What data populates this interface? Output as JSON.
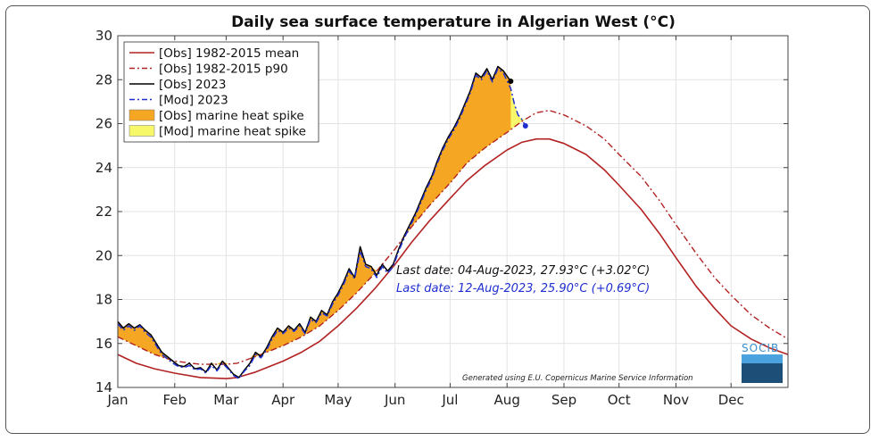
{
  "chart_data": {
    "type": "line",
    "title": "Daily sea surface temperature in Algerian West (°C)",
    "xlabel": "",
    "ylabel": "",
    "xlim": [
      0,
      365
    ],
    "ylim": [
      14,
      30
    ],
    "y_ticks": [
      14,
      16,
      18,
      20,
      22,
      24,
      26,
      28,
      30
    ],
    "x_ticks": [
      {
        "label": "Jan",
        "day": 0
      },
      {
        "label": "Feb",
        "day": 31
      },
      {
        "label": "Mar",
        "day": 59
      },
      {
        "label": "Apr",
        "day": 90
      },
      {
        "label": "May",
        "day": 120
      },
      {
        "label": "Jun",
        "day": 151
      },
      {
        "label": "Jul",
        "day": 181
      },
      {
        "label": "Aug",
        "day": 212
      },
      {
        "label": "Sep",
        "day": 243
      },
      {
        "label": "Oct",
        "day": 273
      },
      {
        "label": "Nov",
        "day": 304
      },
      {
        "label": "Dec",
        "day": 334
      }
    ],
    "grid": true,
    "legend_position": "top-left",
    "legend": [
      {
        "label": "[Obs] 1982-2015 mean",
        "kind": "line",
        "color": "#b22222",
        "dash": "solid"
      },
      {
        "label": "[Obs] 1982-2015 p90",
        "kind": "line",
        "color": "#b22222",
        "dash": "dashdot"
      },
      {
        "label": "[Obs] 2023",
        "kind": "line",
        "color": "#000000",
        "dash": "solid"
      },
      {
        "label": "[Mod] 2023",
        "kind": "line",
        "color": "#1f2fd0",
        "dash": "dashdot"
      },
      {
        "label": "[Obs] marine heat spike",
        "kind": "patch",
        "color": "#f5a623"
      },
      {
        "label": "[Mod] marine heat spike",
        "kind": "patch",
        "color": "#f7f76a"
      }
    ],
    "series": [
      {
        "name": "[Obs] 1982-2015 mean",
        "points": [
          [
            0,
            15.5
          ],
          [
            10,
            15.1
          ],
          [
            20,
            14.85
          ],
          [
            31,
            14.65
          ],
          [
            45,
            14.45
          ],
          [
            59,
            14.4
          ],
          [
            65,
            14.45
          ],
          [
            75,
            14.7
          ],
          [
            90,
            15.2
          ],
          [
            100,
            15.6
          ],
          [
            110,
            16.1
          ],
          [
            120,
            16.8
          ],
          [
            130,
            17.6
          ],
          [
            140,
            18.5
          ],
          [
            151,
            19.6
          ],
          [
            160,
            20.6
          ],
          [
            170,
            21.6
          ],
          [
            181,
            22.6
          ],
          [
            190,
            23.4
          ],
          [
            200,
            24.1
          ],
          [
            212,
            24.8
          ],
          [
            220,
            25.15
          ],
          [
            228,
            25.3
          ],
          [
            235,
            25.3
          ],
          [
            243,
            25.1
          ],
          [
            255,
            24.6
          ],
          [
            265,
            23.9
          ],
          [
            273,
            23.2
          ],
          [
            285,
            22.1
          ],
          [
            295,
            21.0
          ],
          [
            304,
            19.9
          ],
          [
            315,
            18.6
          ],
          [
            325,
            17.6
          ],
          [
            334,
            16.8
          ],
          [
            345,
            16.2
          ],
          [
            355,
            15.8
          ],
          [
            365,
            15.5
          ]
        ]
      },
      {
        "name": "[Obs] 1982-2015 p90",
        "points": [
          [
            0,
            16.3
          ],
          [
            10,
            15.9
          ],
          [
            20,
            15.5
          ],
          [
            31,
            15.2
          ],
          [
            45,
            15.05
          ],
          [
            59,
            15.05
          ],
          [
            65,
            15.1
          ],
          [
            75,
            15.4
          ],
          [
            90,
            15.9
          ],
          [
            100,
            16.3
          ],
          [
            110,
            16.8
          ],
          [
            120,
            17.5
          ],
          [
            130,
            18.3
          ],
          [
            140,
            19.2
          ],
          [
            151,
            20.3
          ],
          [
            160,
            21.3
          ],
          [
            170,
            22.3
          ],
          [
            181,
            23.3
          ],
          [
            190,
            24.2
          ],
          [
            200,
            24.9
          ],
          [
            212,
            25.6
          ],
          [
            220,
            26.1
          ],
          [
            228,
            26.5
          ],
          [
            235,
            26.6
          ],
          [
            243,
            26.4
          ],
          [
            255,
            25.9
          ],
          [
            265,
            25.3
          ],
          [
            273,
            24.6
          ],
          [
            285,
            23.6
          ],
          [
            295,
            22.5
          ],
          [
            304,
            21.4
          ],
          [
            315,
            20.1
          ],
          [
            325,
            19.0
          ],
          [
            334,
            18.2
          ],
          [
            345,
            17.3
          ],
          [
            355,
            16.7
          ],
          [
            365,
            16.2
          ]
        ]
      },
      {
        "name": "[Obs] 2023",
        "points": [
          [
            0,
            17.0
          ],
          [
            3,
            16.7
          ],
          [
            6,
            16.9
          ],
          [
            9,
            16.7
          ],
          [
            12,
            16.85
          ],
          [
            15,
            16.6
          ],
          [
            18,
            16.4
          ],
          [
            21,
            16.0
          ],
          [
            24,
            15.6
          ],
          [
            27,
            15.4
          ],
          [
            30,
            15.2
          ],
          [
            33,
            15.0
          ],
          [
            36,
            14.95
          ],
          [
            39,
            15.1
          ],
          [
            42,
            14.85
          ],
          [
            45,
            14.9
          ],
          [
            48,
            14.7
          ],
          [
            51,
            15.1
          ],
          [
            54,
            14.8
          ],
          [
            57,
            15.2
          ],
          [
            60,
            14.9
          ],
          [
            63,
            14.6
          ],
          [
            66,
            14.45
          ],
          [
            69,
            14.8
          ],
          [
            72,
            15.1
          ],
          [
            75,
            15.6
          ],
          [
            78,
            15.4
          ],
          [
            81,
            15.8
          ],
          [
            84,
            16.3
          ],
          [
            87,
            16.7
          ],
          [
            90,
            16.5
          ],
          [
            93,
            16.8
          ],
          [
            96,
            16.6
          ],
          [
            99,
            16.9
          ],
          [
            102,
            16.5
          ],
          [
            105,
            17.2
          ],
          [
            108,
            17.0
          ],
          [
            111,
            17.5
          ],
          [
            114,
            17.3
          ],
          [
            117,
            17.9
          ],
          [
            120,
            18.3
          ],
          [
            123,
            18.8
          ],
          [
            126,
            19.4
          ],
          [
            129,
            19.0
          ],
          [
            132,
            20.4
          ],
          [
            135,
            19.6
          ],
          [
            138,
            19.5
          ],
          [
            141,
            19.1
          ],
          [
            144,
            19.6
          ],
          [
            147,
            19.3
          ],
          [
            150,
            19.6
          ],
          [
            153,
            20.3
          ],
          [
            156,
            20.9
          ],
          [
            159,
            21.4
          ],
          [
            162,
            21.9
          ],
          [
            165,
            22.5
          ],
          [
            168,
            23.1
          ],
          [
            171,
            23.6
          ],
          [
            174,
            24.3
          ],
          [
            177,
            24.9
          ],
          [
            180,
            25.4
          ],
          [
            183,
            25.8
          ],
          [
            186,
            26.3
          ],
          [
            189,
            26.9
          ],
          [
            192,
            27.5
          ],
          [
            195,
            28.3
          ],
          [
            198,
            28.1
          ],
          [
            201,
            28.5
          ],
          [
            204,
            28.0
          ],
          [
            207,
            28.6
          ],
          [
            210,
            28.4
          ],
          [
            214,
            27.93
          ]
        ]
      },
      {
        "name": "[Mod] 2023",
        "points": [
          [
            0,
            16.9
          ],
          [
            3,
            16.6
          ],
          [
            6,
            16.8
          ],
          [
            9,
            16.6
          ],
          [
            12,
            16.8
          ],
          [
            15,
            16.5
          ],
          [
            18,
            16.3
          ],
          [
            21,
            15.9
          ],
          [
            24,
            15.5
          ],
          [
            27,
            15.3
          ],
          [
            30,
            15.1
          ],
          [
            33,
            14.95
          ],
          [
            36,
            14.9
          ],
          [
            39,
            15.0
          ],
          [
            42,
            14.8
          ],
          [
            45,
            14.85
          ],
          [
            48,
            14.65
          ],
          [
            51,
            15.0
          ],
          [
            54,
            14.75
          ],
          [
            57,
            15.1
          ],
          [
            60,
            14.85
          ],
          [
            63,
            14.55
          ],
          [
            66,
            14.4
          ],
          [
            69,
            14.75
          ],
          [
            72,
            15.0
          ],
          [
            75,
            15.5
          ],
          [
            78,
            15.35
          ],
          [
            81,
            15.7
          ],
          [
            84,
            16.2
          ],
          [
            87,
            16.6
          ],
          [
            90,
            16.45
          ],
          [
            93,
            16.7
          ],
          [
            96,
            16.55
          ],
          [
            99,
            16.8
          ],
          [
            102,
            16.45
          ],
          [
            105,
            17.1
          ],
          [
            108,
            16.95
          ],
          [
            111,
            17.4
          ],
          [
            114,
            17.25
          ],
          [
            117,
            17.8
          ],
          [
            120,
            18.2
          ],
          [
            123,
            18.7
          ],
          [
            126,
            19.3
          ],
          [
            129,
            18.95
          ],
          [
            132,
            20.2
          ],
          [
            135,
            19.5
          ],
          [
            138,
            19.4
          ],
          [
            141,
            19.0
          ],
          [
            144,
            19.5
          ],
          [
            147,
            19.2
          ],
          [
            150,
            19.5
          ],
          [
            153,
            20.2
          ],
          [
            156,
            20.8
          ],
          [
            159,
            21.3
          ],
          [
            162,
            21.8
          ],
          [
            165,
            22.4
          ],
          [
            168,
            23.0
          ],
          [
            171,
            23.5
          ],
          [
            174,
            24.2
          ],
          [
            177,
            24.8
          ],
          [
            180,
            25.3
          ],
          [
            183,
            25.7
          ],
          [
            186,
            26.2
          ],
          [
            189,
            26.8
          ],
          [
            192,
            27.4
          ],
          [
            195,
            28.2
          ],
          [
            198,
            28.0
          ],
          [
            201,
            28.4
          ],
          [
            204,
            27.9
          ],
          [
            207,
            28.5
          ],
          [
            210,
            28.3
          ],
          [
            214,
            27.6
          ],
          [
            216,
            26.9
          ],
          [
            218,
            26.4
          ],
          [
            220,
            26.2
          ],
          [
            222,
            25.9
          ]
        ]
      }
    ],
    "annotations": [
      {
        "text": "Last date: 04-Aug-2023, 27.93°C (+3.02°C)",
        "color": "#111111"
      },
      {
        "text": "Last date: 12-Aug-2023, 25.90°C (+0.69°C)",
        "color": "#1f2fd0"
      }
    ],
    "last_points": [
      {
        "day": 214,
        "value": 27.93,
        "color": "#000000"
      },
      {
        "day": 222,
        "value": 25.9,
        "color": "#1f2fd0"
      }
    ],
    "credit": "Generated using E.U. Copernicus Marine Service Information",
    "logo_text": "SOCIB"
  },
  "colors": {
    "mean": "#b22222",
    "p90": "#b22222",
    "obs": "#000000",
    "mod": "#1f2fd0",
    "obs_spike": "#f5a623",
    "mod_spike": "#f7f76a",
    "grid": "#e3e3e3"
  }
}
